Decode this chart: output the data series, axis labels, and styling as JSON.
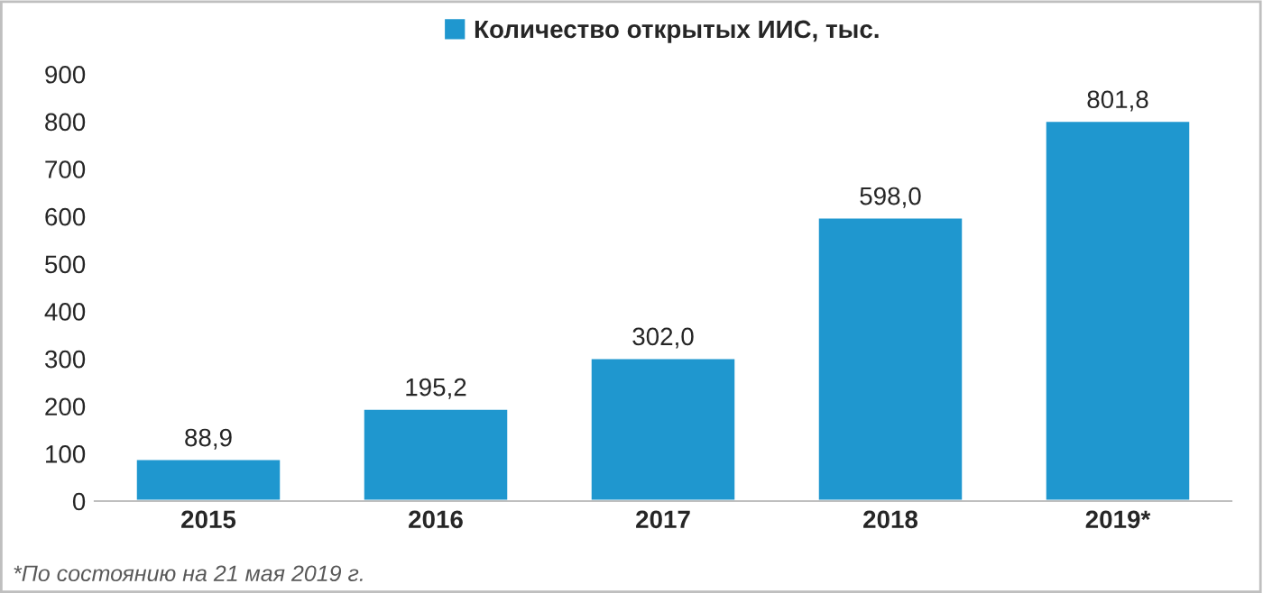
{
  "chart_data": {
    "type": "bar",
    "categories": [
      "2015",
      "2016",
      "2017",
      "2018",
      "2019*"
    ],
    "series": [
      {
        "name": "Количество открытых ИИС, тыс.",
        "color": "#1f97cf",
        "values": [
          88.9,
          195.2,
          302.0,
          598.0,
          801.8
        ],
        "value_labels": [
          "88,9",
          "195,2",
          "302,0",
          "598,0",
          "801,8"
        ]
      }
    ],
    "ylim": [
      0,
      900
    ],
    "yticks": [
      0,
      100,
      200,
      300,
      400,
      500,
      600,
      700,
      800,
      900
    ],
    "legend": "top",
    "grid": false,
    "annotations": [
      "*По состоянию на 21 мая 2019 г."
    ]
  }
}
